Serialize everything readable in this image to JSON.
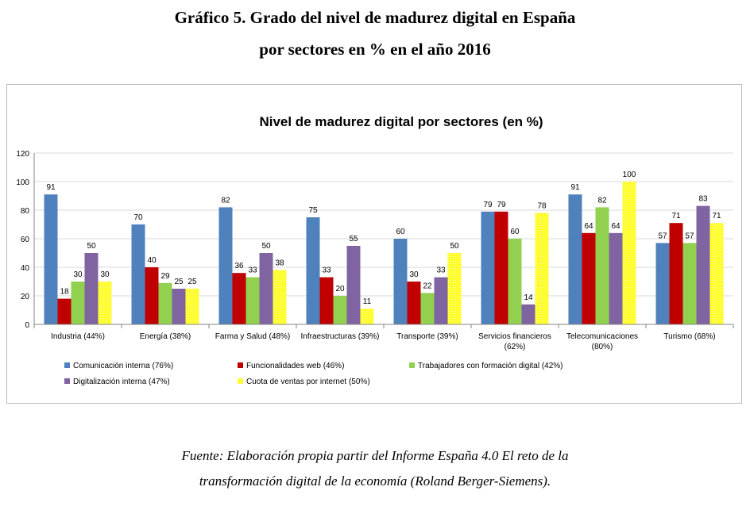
{
  "header": {
    "title_line1": "Gráfico 5. Grado del nivel de madurez digital en España",
    "title_line2": "por sectores en % en el año 2016"
  },
  "footer": {
    "source_line1": "Fuente: Elaboración propia partir del Informe España 4.0 El reto de la",
    "source_line2": "transformación digital de la economía (Roland Berger-Siemens)."
  },
  "chart_data": {
    "type": "bar",
    "title": "Nivel de madurez digital por sectores (en %)",
    "xlabel": "",
    "ylabel": "",
    "ylim": [
      0,
      120
    ],
    "yticks": [
      0,
      20,
      40,
      60,
      80,
      100,
      120
    ],
    "grid": true,
    "legend_position": "bottom",
    "categories": [
      [
        "Industria (44%)"
      ],
      [
        "Energía (38%)"
      ],
      [
        "Farma y Salud (48%)"
      ],
      [
        "Infraestructuras (39%)"
      ],
      [
        "Transporte (39%)"
      ],
      [
        "Servicios financieros",
        "(62%)"
      ],
      [
        "Telecomunicaciones",
        "(80%)"
      ],
      [
        "Turismo (68%)"
      ]
    ],
    "series": [
      {
        "name": "Comunicación interna (76%)",
        "color": "#4f81bd",
        "values": [
          91,
          70,
          82,
          75,
          60,
          79,
          91,
          57
        ]
      },
      {
        "name": "Funcionalidades web (46%)",
        "color": "#c00000",
        "values": [
          18,
          40,
          36,
          33,
          30,
          79,
          64,
          71
        ]
      },
      {
        "name": "Trabajadores con formación digital (42%)",
        "color": "#92d050",
        "values": [
          30,
          29,
          33,
          20,
          22,
          60,
          82,
          57
        ]
      },
      {
        "name": "Digitalización interna (47%)",
        "color": "#8064a2",
        "values": [
          50,
          25,
          50,
          55,
          33,
          14,
          64,
          83
        ]
      },
      {
        "name": "Cuota de ventas por internet (50%)",
        "color": "#ffff00",
        "values": [
          30,
          25,
          38,
          11,
          50,
          78,
          100,
          71
        ]
      }
    ]
  }
}
